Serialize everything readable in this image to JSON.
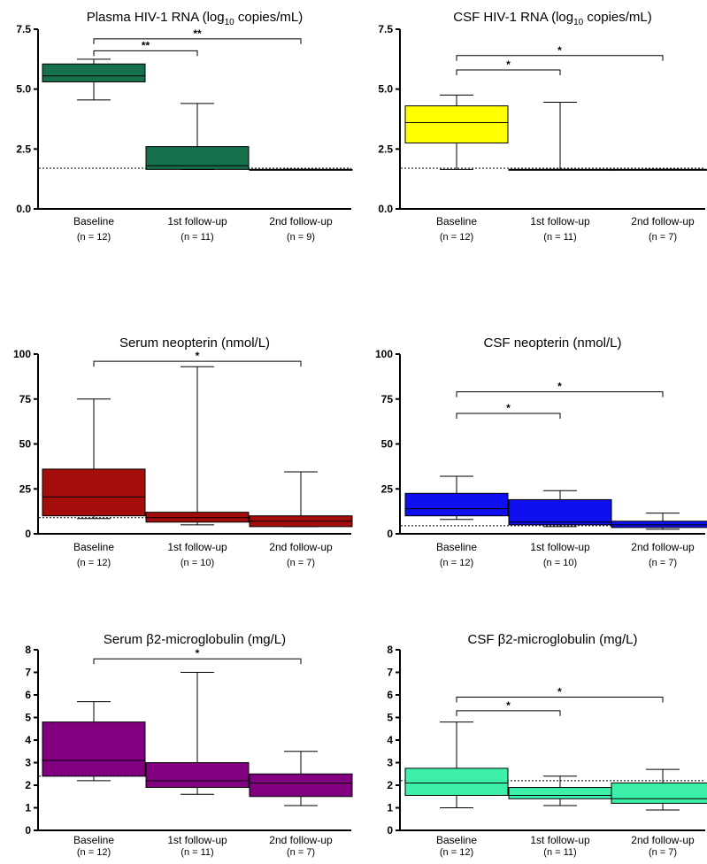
{
  "chart_data": [
    {
      "type": "box",
      "title": "Plasma HIV-1 RNA (log",
      "title_sub": "10",
      "title_suffix": " copies/mL)",
      "color": "#15704b",
      "ylim": [
        0,
        7.5
      ],
      "yticks": [
        "0.0",
        "2.5",
        "5.0",
        "7.5"
      ],
      "categories": [
        "Baseline",
        "1st follow-up",
        "2nd follow-up"
      ],
      "n_labels": [
        "(n = 12)",
        "(n = 11)",
        "(n = 9)"
      ],
      "boxes": [
        {
          "min": 4.55,
          "q1": 5.3,
          "median": 5.55,
          "q3": 6.05,
          "max": 6.25
        },
        {
          "min": 1.65,
          "q1": 1.65,
          "median": 1.8,
          "q3": 2.6,
          "max": 4.4
        },
        {
          "min": 1.65,
          "q1": 1.65,
          "median": 1.65,
          "q3": 1.65,
          "max": 1.65
        }
      ],
      "reference_line": 1.7,
      "significance": [
        {
          "from": 0,
          "to": 1,
          "y": 6.6,
          "label": "**"
        },
        {
          "from": 0,
          "to": 2,
          "y": 7.1,
          "label": "**"
        }
      ]
    },
    {
      "type": "box",
      "title": "CSF HIV-1 RNA (log",
      "title_sub": "10",
      "title_suffix": " copies/mL)",
      "color": "#ffff00",
      "ylim": [
        0,
        7.5
      ],
      "yticks": [
        "0.0",
        "2.5",
        "5.0",
        "7.5"
      ],
      "categories": [
        "Baseline",
        "1st follow-up",
        "2nd follow-up"
      ],
      "n_labels": [
        "(n = 12)",
        "(n = 11)",
        "(n = 7)"
      ],
      "boxes": [
        {
          "min": 1.65,
          "q1": 2.75,
          "median": 3.6,
          "q3": 4.3,
          "max": 4.75
        },
        {
          "min": 1.65,
          "q1": 1.65,
          "median": 1.65,
          "q3": 1.65,
          "max": 4.45
        },
        {
          "min": 1.65,
          "q1": 1.65,
          "median": 1.65,
          "q3": 1.65,
          "max": 1.65
        }
      ],
      "reference_line": 1.7,
      "significance": [
        {
          "from": 0,
          "to": 1,
          "y": 5.8,
          "label": "*"
        },
        {
          "from": 0,
          "to": 2,
          "y": 6.4,
          "label": "*"
        }
      ]
    },
    {
      "type": "box",
      "title": "Serum neopterin (nmol/L)",
      "color": "#a50d0d",
      "ylim": [
        0,
        100
      ],
      "yticks": [
        "0",
        "25",
        "50",
        "75",
        "100"
      ],
      "categories": [
        "Baseline",
        "1st follow-up",
        "2nd follow-up"
      ],
      "n_labels": [
        "(n = 12)",
        "(n = 10)",
        "(n = 7)"
      ],
      "boxes": [
        {
          "min": 8.5,
          "q1": 10,
          "median": 20.5,
          "q3": 36,
          "max": 75
        },
        {
          "min": 5,
          "q1": 6.5,
          "median": 9,
          "q3": 12,
          "max": 93
        },
        {
          "min": 4,
          "q1": 4,
          "median": 7,
          "q3": 10,
          "max": 34.5
        }
      ],
      "reference_line": 9,
      "significance": [
        {
          "from": 0,
          "to": 2,
          "y": 96,
          "label": "*"
        }
      ]
    },
    {
      "type": "box",
      "title": "CSF neopterin (nmol/L)",
      "color": "#0f0ff0",
      "ylim": [
        0,
        100
      ],
      "yticks": [
        "0",
        "25",
        "50",
        "75",
        "100"
      ],
      "categories": [
        "Baseline",
        "1st follow-up",
        "2nd follow-up"
      ],
      "n_labels": [
        "(n = 12)",
        "(n = 10)",
        "(n = 7)"
      ],
      "boxes": [
        {
          "min": 8,
          "q1": 10,
          "median": 14,
          "q3": 22.5,
          "max": 32
        },
        {
          "min": 4,
          "q1": 5,
          "median": 6.5,
          "q3": 19,
          "max": 24
        },
        {
          "min": 2.5,
          "q1": 3.5,
          "median": 5,
          "q3": 7,
          "max": 11.5
        }
      ],
      "reference_line": 4.5,
      "significance": [
        {
          "from": 0,
          "to": 1,
          "y": 67,
          "label": "*"
        },
        {
          "from": 0,
          "to": 2,
          "y": 79,
          "label": "*"
        }
      ]
    },
    {
      "type": "box",
      "title": "Serum β2-microglobulin (mg/L)",
      "color": "#800080",
      "ylim": [
        0,
        8
      ],
      "yticks": [
        "0",
        "1",
        "2",
        "3",
        "4",
        "5",
        "6",
        "7",
        "8"
      ],
      "categories": [
        "Baseline",
        "1st follow-up",
        "2nd follow-up"
      ],
      "n_labels": [
        "(n = 12)",
        "(n = 11)",
        "(n = 7)"
      ],
      "boxes": [
        {
          "min": 2.2,
          "q1": 2.4,
          "median": 3.1,
          "q3": 4.8,
          "max": 5.7
        },
        {
          "min": 1.6,
          "q1": 1.9,
          "median": 2.2,
          "q3": 3.0,
          "max": 7.0
        },
        {
          "min": 1.1,
          "q1": 1.5,
          "median": 2.1,
          "q3": 2.5,
          "max": 3.5
        }
      ],
      "reference_line": 2.4,
      "significance": [
        {
          "from": 0,
          "to": 2,
          "y": 7.6,
          "label": "*"
        }
      ]
    },
    {
      "type": "box",
      "title": "CSF β2-microglobulin (mg/L)",
      "color": "#3cf0aa",
      "ylim": [
        0,
        8
      ],
      "yticks": [
        "0",
        "1",
        "2",
        "3",
        "4",
        "5",
        "6",
        "7",
        "8"
      ],
      "categories": [
        "Baseline",
        "1st follow-up",
        "2nd follow-up"
      ],
      "n_labels": [
        "(n = 12)",
        "(n = 11)",
        "(n = 7)"
      ],
      "boxes": [
        {
          "min": 1.0,
          "q1": 1.55,
          "median": 2.1,
          "q3": 2.75,
          "max": 4.8
        },
        {
          "min": 1.1,
          "q1": 1.4,
          "median": 1.55,
          "q3": 1.9,
          "max": 2.4
        },
        {
          "min": 0.9,
          "q1": 1.2,
          "median": 1.4,
          "q3": 2.1,
          "max": 2.7
        }
      ],
      "reference_line": 2.2,
      "significance": [
        {
          "from": 0,
          "to": 1,
          "y": 5.3,
          "label": "*"
        },
        {
          "from": 0,
          "to": 2,
          "y": 5.9,
          "label": "*"
        }
      ]
    }
  ]
}
